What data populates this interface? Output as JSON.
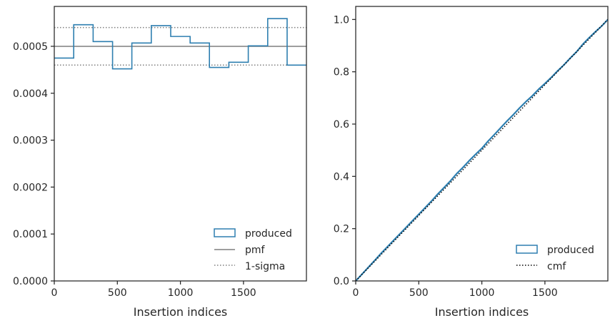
{
  "chart_data": [
    {
      "type": "line",
      "subtype": "step-histogram",
      "title": "",
      "xlabel": "Insertion indices",
      "ylabel": "",
      "xlim": [
        0,
        1999
      ],
      "ylim": [
        0,
        0.000585
      ],
      "xticks": [
        0,
        500,
        1000,
        1500
      ],
      "xtick_labels": [
        "0",
        "500",
        "1000",
        "1500"
      ],
      "yticks": [
        0,
        0.0001,
        0.0002,
        0.0003,
        0.0004,
        0.0005
      ],
      "ytick_labels": [
        "0.0000",
        "0.0001",
        "0.0002",
        "0.0003",
        "0.0004",
        "0.0005"
      ],
      "bin_edges": [
        0,
        154,
        308,
        462,
        615,
        769,
        923,
        1077,
        1230,
        1384,
        1538,
        1692,
        1846,
        1999
      ],
      "series": [
        {
          "name": "produced",
          "style": "step",
          "color": "#2e7fb0",
          "values": [
            0.000475,
            0.000546,
            0.00051,
            0.000452,
            0.000507,
            0.000544,
            0.000521,
            0.000507,
            0.000455,
            0.000466,
            0.000501,
            0.000559,
            0.00046
          ]
        },
        {
          "name": "pmf",
          "style": "hline",
          "color": "#7f7f7f",
          "y": 0.0005
        },
        {
          "name": "1-sigma",
          "style": "dotted-hlines",
          "color": "#7f7f7f",
          "y": [
            0.00046,
            0.00054
          ]
        }
      ],
      "legend": {
        "position": "lower-right",
        "entries": [
          "produced",
          "pmf",
          "1-sigma"
        ]
      }
    },
    {
      "type": "line",
      "title": "",
      "xlabel": "Insertion indices",
      "ylabel": "",
      "xlim": [
        0,
        1999
      ],
      "ylim": [
        0,
        1.05
      ],
      "xticks": [
        0,
        500,
        1000,
        1500
      ],
      "xtick_labels": [
        "0",
        "500",
        "1000",
        "1500"
      ],
      "yticks": [
        0,
        0.2,
        0.4,
        0.6,
        0.8,
        1.0
      ],
      "ytick_labels": [
        "0.0",
        "0.2",
        "0.4",
        "0.6",
        "0.8",
        "1.0"
      ],
      "series": [
        {
          "name": "produced",
          "style": "step",
          "color": "#2e7fb0",
          "x": [
            0,
            50,
            100,
            150,
            200,
            250,
            300,
            350,
            400,
            450,
            500,
            550,
            600,
            650,
            700,
            750,
            800,
            850,
            900,
            950,
            1000,
            1050,
            1100,
            1150,
            1200,
            1250,
            1300,
            1350,
            1400,
            1450,
            1500,
            1550,
            1600,
            1650,
            1700,
            1750,
            1800,
            1850,
            1900,
            1950,
            1999
          ],
          "y": [
            0,
            0.026,
            0.052,
            0.078,
            0.105,
            0.13,
            0.155,
            0.18,
            0.205,
            0.23,
            0.255,
            0.28,
            0.305,
            0.332,
            0.357,
            0.382,
            0.41,
            0.434,
            0.46,
            0.484,
            0.507,
            0.535,
            0.56,
            0.586,
            0.612,
            0.636,
            0.662,
            0.686,
            0.708,
            0.733,
            0.755,
            0.778,
            0.803,
            0.826,
            0.852,
            0.876,
            0.905,
            0.93,
            0.953,
            0.975,
            1.0
          ]
        },
        {
          "name": "cmf",
          "style": "dotted",
          "color": "#000000",
          "x": [
            0,
            1999
          ],
          "y": [
            0,
            1.0
          ]
        }
      ],
      "legend": {
        "position": "lower-right",
        "entries": [
          "produced",
          "cmf"
        ]
      }
    }
  ]
}
